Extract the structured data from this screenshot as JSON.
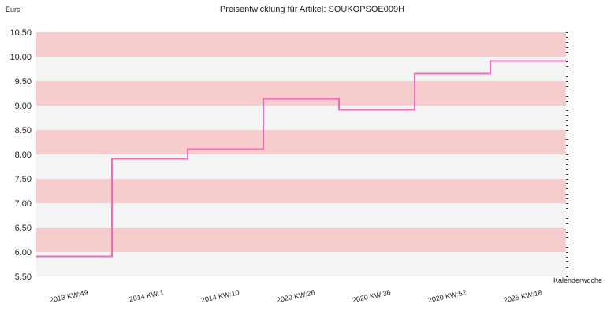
{
  "chart_data": {
    "type": "line",
    "step": true,
    "title": "Preisentwicklung für Artikel: SOUKOPSOE009H",
    "ylabel": "Euro",
    "xlabel": "Kalenderwoche",
    "ylim": [
      5.5,
      10.5
    ],
    "yticks": [
      "10.50",
      "10.00",
      "9.50",
      "9.00",
      "8.50",
      "8.00",
      "7.50",
      "7.00",
      "6.50",
      "6.00",
      "5.50"
    ],
    "categories": [
      "2013 KW:49",
      "2014 KW:1",
      "2014 KW:10",
      "2020 KW:26",
      "2020 KW:36",
      "2020 KW:52",
      "2025 KW:18"
    ],
    "series": [
      {
        "values": [
          5.92,
          7.92,
          8.11,
          9.15,
          8.92,
          9.66,
          9.92
        ]
      }
    ],
    "grid": "horizontal bands",
    "colors": {
      "line": "#f06cbc",
      "band_dark": "#f7cccc",
      "band_light": "#f4f4f4"
    }
  }
}
